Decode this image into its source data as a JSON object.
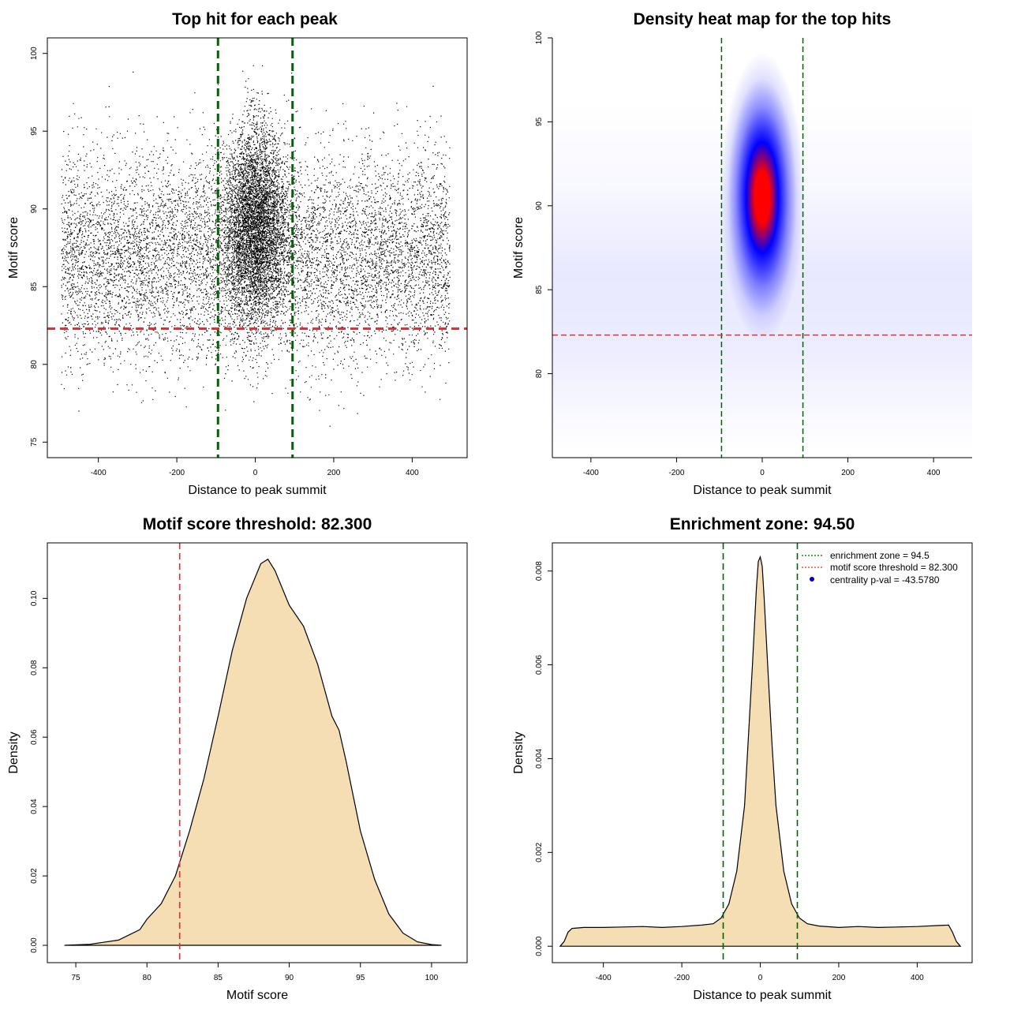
{
  "chart_data": [
    {
      "type": "scatter",
      "title": "Top hit for each peak",
      "xlabel": "Distance to peak summit",
      "ylabel": "Motif score",
      "xlim": [
        -530,
        540
      ],
      "ylim": [
        74,
        101
      ],
      "xticks": [
        -400,
        -200,
        0,
        200,
        400
      ],
      "yticks": [
        75,
        80,
        85,
        90,
        95,
        100
      ],
      "xtick_labels": [
        "-400",
        "-200",
        "0",
        "200",
        "400"
      ],
      "ytick_labels": [
        "75",
        "80",
        "85",
        "90",
        "95",
        "100"
      ],
      "point_distribution": {
        "background_x_range": [
          -495,
          495
        ],
        "background_y_range": [
          76,
          99
        ],
        "background_peak_score": 87,
        "central_cluster_x_center": 0,
        "central_cluster_x_spread": 40,
        "central_cluster_y_range": [
          78,
          99.5
        ],
        "central_cluster_peak_score": 89
      },
      "vlines": [
        -95,
        95
      ],
      "hline": 82.3,
      "colors": {
        "points": "#000000",
        "vline": "#006400",
        "hline": "#e03030"
      }
    },
    {
      "type": "heatmap",
      "title": "Density heat map for the top hits",
      "xlabel": "Distance to peak summit",
      "ylabel": "Motif score",
      "xlim": [
        -490,
        490
      ],
      "ylim": [
        75,
        100
      ],
      "xticks": [
        -400,
        -200,
        0,
        200,
        400
      ],
      "yticks": [
        80,
        85,
        90,
        95,
        100
      ],
      "xtick_labels": [
        "-400",
        "-200",
        "0",
        "200",
        "400"
      ],
      "ytick_labels": [
        "80",
        "85",
        "90",
        "95",
        "100"
      ],
      "hotspot": {
        "x": 0,
        "y": 90.5,
        "x_spread": 38,
        "y_spread": 3.6
      },
      "vlines": [
        -95,
        95
      ],
      "hline": 82.3,
      "colors": {
        "low": "#ffffff",
        "mid": "#0000ff",
        "high": "#ff0000",
        "vline": "#006400",
        "hline": "#e03030"
      }
    },
    {
      "type": "area",
      "title": "Motif score threshold: 82.300",
      "xlabel": "Motif score",
      "ylabel": "Density",
      "xlim": [
        73,
        102.5
      ],
      "ylim": [
        -0.005,
        0.116
      ],
      "xticks": [
        75,
        80,
        85,
        90,
        95,
        100
      ],
      "yticks": [
        0,
        0.02,
        0.04,
        0.06,
        0.08,
        0.1
      ],
      "xtick_labels": [
        "75",
        "80",
        "85",
        "90",
        "95",
        "100"
      ],
      "ytick_labels": [
        "0.00",
        "0.02",
        "0.04",
        "0.06",
        "0.08",
        "0.10"
      ],
      "x": [
        74.2,
        76,
        78,
        79.5,
        80,
        81,
        82,
        83,
        84,
        85,
        86,
        87,
        88,
        88.5,
        89,
        90,
        91,
        92,
        93,
        93.5,
        94,
        95,
        96,
        97,
        98,
        99,
        100,
        100.7
      ],
      "y": [
        0,
        0.0003,
        0.0015,
        0.0045,
        0.0075,
        0.012,
        0.02,
        0.033,
        0.048,
        0.066,
        0.085,
        0.1,
        0.11,
        0.1113,
        0.108,
        0.098,
        0.092,
        0.081,
        0.066,
        0.062,
        0.053,
        0.033,
        0.019,
        0.009,
        0.0035,
        0.001,
        0.0002,
        0
      ],
      "vline": 82.3,
      "colors": {
        "fill": "#f5deb3",
        "line": "#000000",
        "vline": "#e03030"
      }
    },
    {
      "type": "area",
      "title": "Enrichment zone: 94.50",
      "xlabel": "Distance to peak summit",
      "ylabel": "Density",
      "xlim": [
        -530,
        540
      ],
      "ylim": [
        -0.00035,
        0.0086
      ],
      "xticks": [
        -400,
        -200,
        0,
        200,
        400
      ],
      "yticks": [
        0,
        0.002,
        0.004,
        0.006,
        0.008
      ],
      "xtick_labels": [
        "-400",
        "-200",
        "0",
        "200",
        "400"
      ],
      "ytick_labels": [
        "0.000",
        "0.002",
        "0.004",
        "0.006",
        "0.008"
      ],
      "x": [
        -510,
        -500,
        -490,
        -480,
        -450,
        -400,
        -350,
        -300,
        -250,
        -200,
        -150,
        -120,
        -100,
        -80,
        -60,
        -40,
        -30,
        -20,
        -10,
        -5,
        0,
        5,
        10,
        20,
        30,
        40,
        60,
        80,
        100,
        120,
        150,
        200,
        250,
        300,
        350,
        400,
        450,
        480,
        490,
        500,
        510
      ],
      "y": [
        0,
        0.0001,
        0.0003,
        0.00038,
        0.0004,
        0.0004,
        0.00041,
        0.00042,
        0.0004,
        0.00042,
        0.00045,
        0.00048,
        0.0006,
        0.0009,
        0.0016,
        0.003,
        0.0045,
        0.006,
        0.0076,
        0.0082,
        0.0083,
        0.0081,
        0.0074,
        0.0058,
        0.0043,
        0.003,
        0.0016,
        0.0009,
        0.0006,
        0.00048,
        0.00043,
        0.0004,
        0.00042,
        0.0004,
        0.00041,
        0.00042,
        0.00044,
        0.00045,
        0.0003,
        0.0001,
        0
      ],
      "vlines": [
        -94.5,
        94.5
      ],
      "legend": {
        "position": "top-right",
        "entries": [
          {
            "label": "enrichment zone = 94.5",
            "kind": "line",
            "color": "#006400"
          },
          {
            "label": "motif score threshold = 82.300",
            "kind": "line",
            "color": "#e03030"
          },
          {
            "label": "centrality p-val = -43.5780",
            "kind": "point",
            "color": "#0000cc"
          }
        ]
      },
      "colors": {
        "fill": "#f5deb3",
        "line": "#000000",
        "vline": "#006400"
      }
    }
  ]
}
